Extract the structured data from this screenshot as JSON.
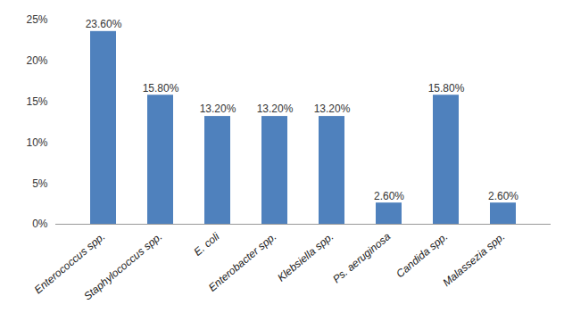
{
  "chart_data": {
    "type": "bar",
    "categories": [
      "Enterococcus spp.",
      "Staphylococcus spp.",
      "E. coli",
      "Enterobacter spp.",
      "Klebsiella spp.",
      "Ps. aeruginosa",
      "Candida spp.",
      "Malassezia spp."
    ],
    "values": [
      23.6,
      15.8,
      13.2,
      13.2,
      13.2,
      2.6,
      15.8,
      2.6
    ],
    "value_labels": [
      "23.60%",
      "15.80%",
      "13.20%",
      "13.20%",
      "13.20%",
      "2.60%",
      "15.80%",
      "2.60%"
    ],
    "color": "#4f81bd",
    "ylim": [
      0,
      25
    ],
    "yticks": [
      {
        "value": 0,
        "label": "0%"
      },
      {
        "value": 5,
        "label": "5%"
      },
      {
        "value": 10,
        "label": "10%"
      },
      {
        "value": 15,
        "label": "15%"
      },
      {
        "value": 20,
        "label": "20%"
      },
      {
        "value": 25,
        "label": "25%"
      }
    ],
    "grid": false,
    "data_labels": true
  }
}
